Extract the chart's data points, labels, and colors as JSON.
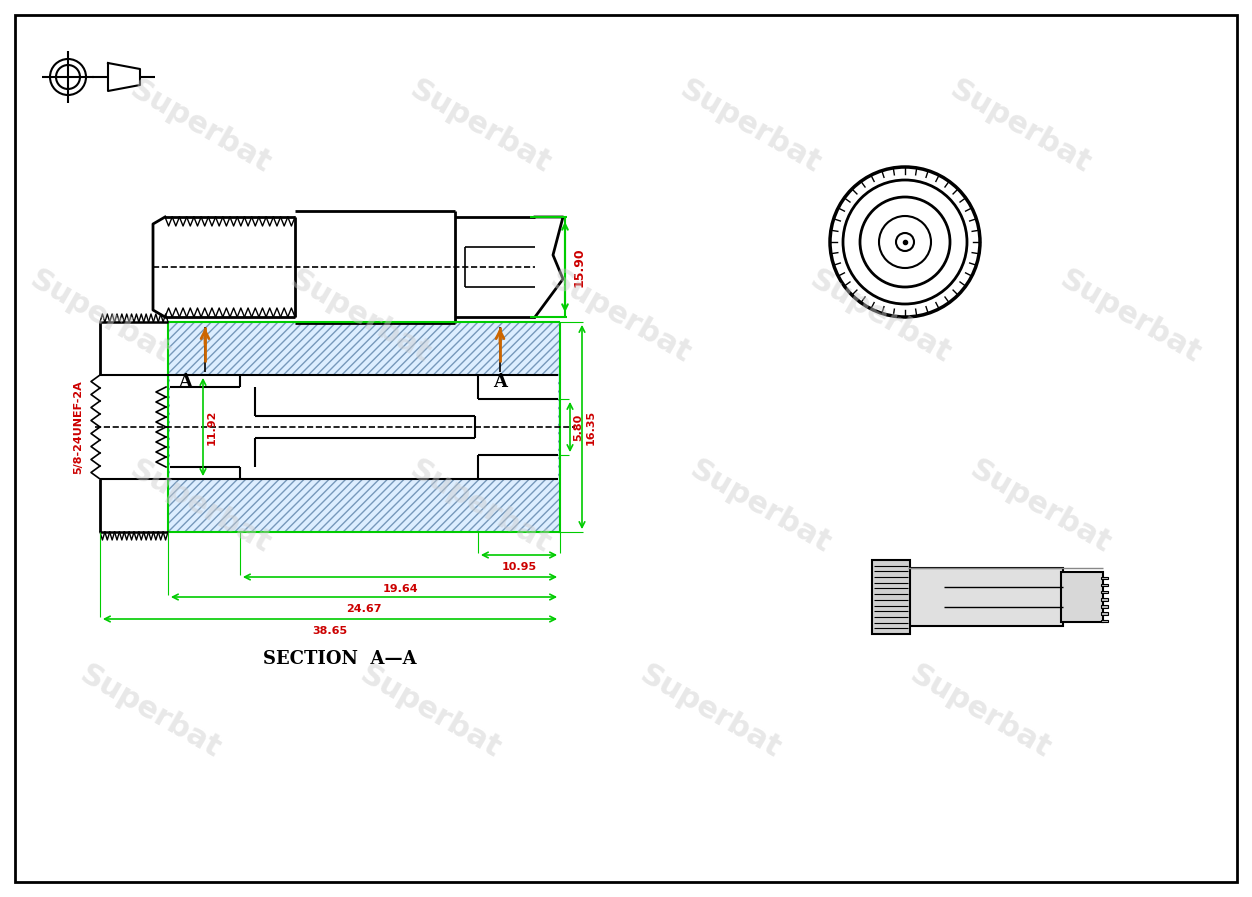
{
  "bg_color": "#FFFFFF",
  "border_color": "#000000",
  "line_color": "#000000",
  "green_color": "#00CC00",
  "red_color": "#CC0000",
  "orange_color": "#CC6600",
  "blue_hatch": "#6699CC",
  "watermark_color": "#CCCCCC",
  "watermark_text": "Superbat",
  "dim_15_90": "15.90",
  "dim_11_92": "11.92",
  "dim_5_80": "5.80",
  "dim_16_35": "16.35",
  "dim_10_95": "10.95",
  "dim_19_64": "19.64",
  "dim_24_67": "24.67",
  "dim_38_65": "38.65",
  "thread_label": "5/8-24UNEF-2A",
  "section_label": "SECTION  A—A",
  "section_marker": "A"
}
